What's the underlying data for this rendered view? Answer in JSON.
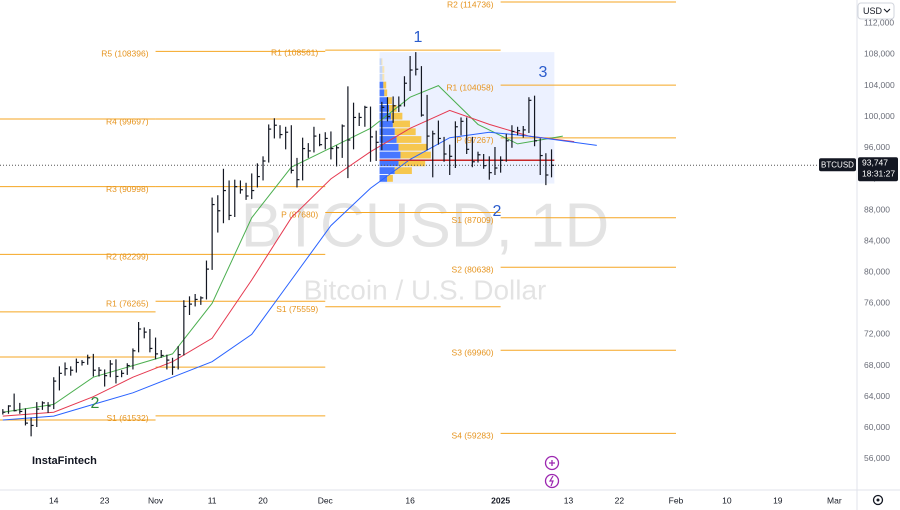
{
  "currency": "USD",
  "symbol_label": "BTCUSD",
  "countdown": "18:31:27",
  "brand": "InstaFintech",
  "watermark_title": "BTCUSD, 1D",
  "watermark_subtitle": "Bitcoin / U.S. Dollar",
  "chart_data": {
    "type": "ohlc",
    "color": "#131722",
    "xlim": [
      -9.5,
      142
    ],
    "ylim": [
      52000,
      115000
    ],
    "xticks": [
      {
        "value": 0,
        "label": "14"
      },
      {
        "value": 9,
        "label": "23"
      },
      {
        "value": 18,
        "label": "Nov"
      },
      {
        "value": 28,
        "label": "11"
      },
      {
        "value": 37,
        "label": "20"
      },
      {
        "value": 48,
        "label": "Dec"
      },
      {
        "value": 63,
        "label": "16"
      },
      {
        "value": 79,
        "label": "2025"
      },
      {
        "value": 91,
        "label": "13"
      },
      {
        "value": 100,
        "label": "22"
      },
      {
        "value": 110,
        "label": "Feb"
      },
      {
        "value": 119,
        "label": "10"
      },
      {
        "value": 128,
        "label": "19"
      },
      {
        "value": 138,
        "label": "Mar"
      }
    ],
    "yticks": [
      {
        "value": 56000,
        "label": "56,000"
      },
      {
        "value": 60000,
        "label": "60,000"
      },
      {
        "value": 64000,
        "label": "64,000"
      },
      {
        "value": 68000,
        "label": "68,000"
      },
      {
        "value": 72000,
        "label": "72,000"
      },
      {
        "value": 76000,
        "label": "76,000"
      },
      {
        "value": 80000,
        "label": "80,000"
      },
      {
        "value": 84000,
        "label": "84,000"
      },
      {
        "value": 88000,
        "label": "88,000"
      },
      {
        "value": 92000,
        "label": "92,000"
      },
      {
        "value": 96000,
        "label": "96,000"
      },
      {
        "value": 100000,
        "label": "100,000"
      },
      {
        "value": 104000,
        "label": "104,000"
      },
      {
        "value": 108000,
        "label": "108,000"
      },
      {
        "value": 112000,
        "label": "112,000"
      }
    ],
    "x": [
      -9,
      -8,
      -7,
      -6,
      -5,
      -4,
      -3,
      -2,
      -1,
      0,
      1,
      2,
      3,
      4,
      5,
      6,
      7,
      8,
      9,
      10,
      11,
      12,
      13,
      14,
      15,
      16,
      17,
      18,
      19,
      20,
      21,
      22,
      23,
      24,
      25,
      26,
      27,
      28,
      29,
      30,
      31,
      32,
      33,
      34,
      35,
      36,
      37,
      38,
      39,
      40,
      41,
      42,
      43,
      44,
      45,
      46,
      47,
      48,
      49,
      50,
      51,
      52,
      53,
      54,
      55,
      56,
      57,
      58,
      59,
      60,
      61,
      62,
      63,
      64,
      65,
      66,
      67,
      68,
      69,
      70,
      71,
      72,
      73,
      74,
      75,
      76,
      77,
      78,
      79,
      80,
      81,
      82,
      83,
      84,
      85,
      86,
      87,
      88
    ],
    "high": [
      62400,
      62900,
      64400,
      63200,
      62500,
      61300,
      63300,
      63400,
      63300,
      66500,
      67900,
      68400,
      67900,
      68900,
      68700,
      69400,
      69500,
      67800,
      67500,
      68700,
      68800,
      67400,
      68300,
      70200,
      73600,
      72900,
      72700,
      71600,
      70000,
      69400,
      69000,
      70500,
      76400,
      76900,
      77200,
      76900,
      81500,
      89600,
      89900,
      93300,
      91800,
      91900,
      91800,
      91500,
      92700,
      94000,
      94900,
      99000,
      99800,
      98900,
      98700,
      98900,
      94700,
      97300,
      96600,
      98700,
      97800,
      98000,
      98100,
      96300,
      99000,
      103900,
      101800,
      100500,
      101400,
      101300,
      98200,
      101900,
      102500,
      102600,
      102600,
      105200,
      107800,
      108300,
      106500,
      102800,
      98200,
      99500,
      97400,
      96400,
      99400,
      99900,
      99900,
      97400,
      95500,
      95200,
      94900,
      96100,
      94900,
      97800,
      98900,
      98700,
      98800,
      102500,
      102700,
      97200,
      95300,
      95800
    ],
    "low": [
      61700,
      61800,
      62100,
      61800,
      60300,
      58900,
      60100,
      62300,
      61900,
      62400,
      64800,
      66700,
      66700,
      67100,
      68000,
      68100,
      66600,
      66600,
      65300,
      66500,
      65700,
      66500,
      66800,
      67500,
      69700,
      71500,
      69700,
      68800,
      69000,
      67500,
      66800,
      67500,
      69300,
      74500,
      75600,
      75800,
      76500,
      80300,
      85100,
      86300,
      86700,
      87100,
      90100,
      89300,
      89400,
      90900,
      91800,
      94100,
      97200,
      97200,
      95800,
      92700,
      90900,
      91800,
      94700,
      95400,
      96200,
      95800,
      94500,
      93600,
      94700,
      92100,
      95800,
      98800,
      98700,
      94200,
      94300,
      95700,
      99400,
      99200,
      100600,
      101300,
      103300,
      105300,
      100000,
      95700,
      92200,
      96400,
      94200,
      92500,
      93400,
      97600,
      95200,
      93500,
      94100,
      93300,
      91900,
      92500,
      92800,
      94200,
      96000,
      97600,
      97300,
      97900,
      96200,
      92500,
      91200,
      92200
    ],
    "close": [
      62000,
      62800,
      62200,
      62100,
      60600,
      60300,
      62400,
      63200,
      62800,
      66000,
      67000,
      67600,
      67400,
      68400,
      68400,
      69000,
      67400,
      67400,
      66700,
      68200,
      66600,
      67000,
      68000,
      69900,
      72700,
      72300,
      70200,
      69500,
      69300,
      68700,
      67800,
      69400,
      75600,
      75900,
      76500,
      76700,
      80400,
      88700,
      87900,
      90500,
      87300,
      91000,
      90600,
      89800,
      90500,
      92300,
      94300,
      98400,
      98900,
      97700,
      98000,
      93100,
      91900,
      95900,
      95600,
      97500,
      96400,
      97200,
      95900,
      96000,
      98800,
      97000,
      99900,
      99900,
      101200,
      97400,
      96700,
      101200,
      100000,
      101400,
      101400,
      104300,
      106000,
      106100,
      100200,
      97500,
      97800,
      97200,
      95200,
      94900,
      98700,
      99400,
      95800,
      94200,
      95100,
      93700,
      92800,
      93400,
      94400,
      96900,
      98100,
      98200,
      98300,
      102100,
      96900,
      95000,
      92500,
      93747
    ],
    "last_price": {
      "value": 93747,
      "label": "93,747"
    },
    "series": [
      {
        "color": "#4caf50",
        "x": [
          -9,
          0,
          7,
          14,
          21,
          28,
          35,
          42,
          49,
          56,
          63,
          68,
          75,
          82,
          90
        ],
        "values": [
          62000,
          63000,
          66500,
          68000,
          69500,
          76000,
          87000,
          93500,
          96000,
          98500,
          102500,
          104000,
          99000,
          96500,
          97500
        ]
      },
      {
        "color": "#e53950",
        "x": [
          -9,
          0,
          7,
          14,
          21,
          28,
          35,
          42,
          49,
          56,
          63,
          70,
          77,
          84,
          92
        ],
        "values": [
          61500,
          62000,
          64000,
          66500,
          68500,
          71500,
          79000,
          87000,
          92000,
          95500,
          98500,
          100800,
          99000,
          97500,
          96800
        ]
      },
      {
        "color": "#2962ff",
        "x": [
          -9,
          0,
          7,
          14,
          21,
          28,
          35,
          42,
          49,
          56,
          63,
          70,
          77,
          84,
          96
        ],
        "values": [
          61000,
          61500,
          63000,
          64500,
          66500,
          68500,
          72000,
          79000,
          86000,
          90800,
          94500,
          97300,
          98000,
          97500,
          96300
        ]
      }
    ],
    "pivots": [
      {
        "label": null,
        "value": 99700,
        "from": -10,
        "to": 18
      },
      {
        "label": null,
        "value": 91000,
        "from": -10,
        "to": 18
      },
      {
        "label": null,
        "value": 82300,
        "from": -10,
        "to": 18
      },
      {
        "label": null,
        "value": 74900,
        "from": -10,
        "to": 18
      },
      {
        "label": null,
        "value": 69100,
        "from": -10,
        "to": 18
      },
      {
        "label": null,
        "value": 61000,
        "from": -10,
        "to": 18
      },
      {
        "label": "R5 (108396)",
        "value": 108396,
        "from": 18,
        "to": 48
      },
      {
        "label": "R4 (99697)",
        "value": 99697,
        "from": 18,
        "to": 48
      },
      {
        "label": "R3 (90998)",
        "value": 90998,
        "from": 18,
        "to": 48
      },
      {
        "label": "R2 (82299)",
        "value": 82299,
        "from": 18,
        "to": 48
      },
      {
        "label": "R1 (76265)",
        "value": 76265,
        "from": 18,
        "to": 48
      },
      {
        "label": null,
        "value": 67800,
        "from": 18,
        "to": 48
      },
      {
        "label": "S1 (61532)",
        "value": 61532,
        "from": 18,
        "to": 48
      },
      {
        "label": "R1 (108561)",
        "value": 108561,
        "from": 48,
        "to": 79
      },
      {
        "label": "P (87680)",
        "value": 87680,
        "from": 48,
        "to": 79
      },
      {
        "label": "S1 (75559)",
        "value": 75559,
        "from": 48,
        "to": 79
      },
      {
        "label": "R2 (114736)",
        "value": 114736,
        "from": 79,
        "to": 110
      },
      {
        "label": "R1 (104058)",
        "value": 104058,
        "from": 79,
        "to": 110
      },
      {
        "label": "P (97267)",
        "value": 97267,
        "from": 79,
        "to": 110
      },
      {
        "label": "S1 (87009)",
        "value": 87009,
        "from": 79,
        "to": 110
      },
      {
        "label": "S2 (80638)",
        "value": 80638,
        "from": 79,
        "to": 110
      },
      {
        "label": "S3 (69960)",
        "value": 69960,
        "from": 79,
        "to": 110
      },
      {
        "label": "S4 (59283)",
        "value": 59283,
        "from": 79,
        "to": 110
      }
    ],
    "range_box": {
      "x": [
        57.6,
        88.5
      ],
      "y": [
        91400,
        108300
      ]
    },
    "poc": 94400,
    "volume_profile": {
      "levels": [
        107000,
        106000,
        105000,
        104000,
        103000,
        102000,
        101000,
        100000,
        99000,
        98000,
        97000,
        96000,
        95000,
        94000,
        93000,
        92000
      ],
      "up": [
        2,
        3,
        3,
        4,
        5,
        8,
        10,
        12,
        14,
        16,
        18,
        20,
        22,
        20,
        16,
        8
      ],
      "down": [
        1,
        2,
        2,
        3,
        3,
        5,
        8,
        12,
        18,
        22,
        26,
        30,
        32,
        28,
        18,
        6
      ]
    },
    "annotations": [
      {
        "text": "1",
        "color": "#2b5ccc"
      },
      {
        "text": "2",
        "color": "#2b5ccc"
      },
      {
        "text": "3",
        "color": "#2b5ccc"
      },
      {
        "text": "2",
        "color": "#2e8b3e"
      }
    ]
  }
}
